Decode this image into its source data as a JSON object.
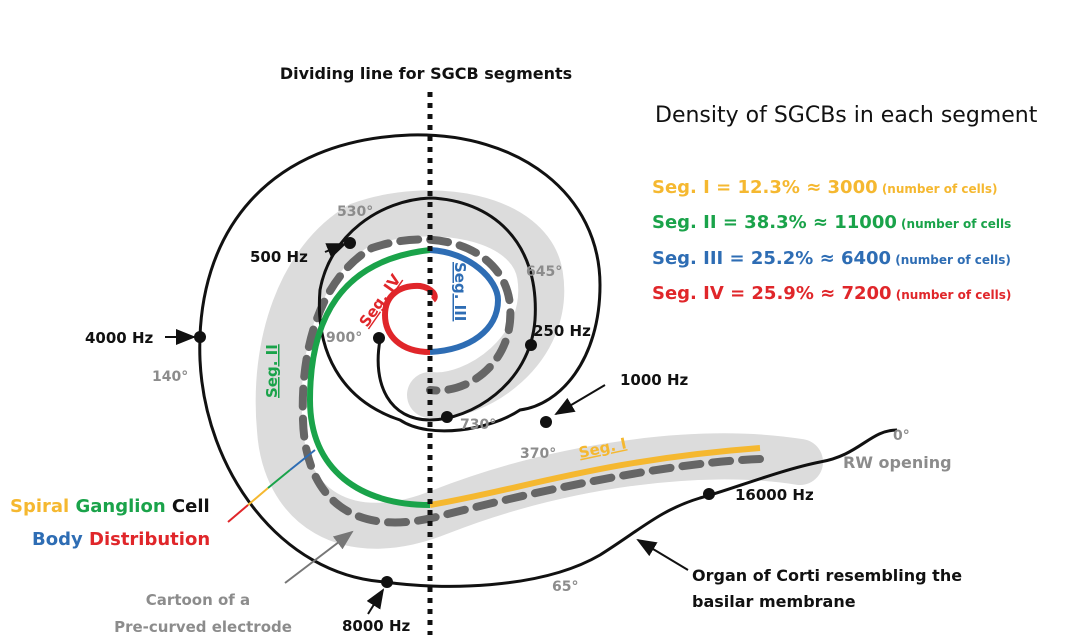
{
  "dividing_label": "Dividing line for SGCB segments",
  "density": {
    "title": "Density of SGCBs in each segment",
    "rows": [
      {
        "seg": "Seg. I",
        "eq": " = 12.3% ≈ 3000",
        "note": " (number of cells)",
        "color": "#f5b830"
      },
      {
        "seg": "Seg. II",
        "eq": " = 38.3% ≈ 11000",
        "note": " (number of cells",
        "color": "#1aa34a"
      },
      {
        "seg": "Seg. III",
        "eq": " = 25.2% ≈ 6400",
        "note": " (number of cells)",
        "color": "#2e6db4"
      },
      {
        "seg": "Seg. IV",
        "eq": " = 25.9% ≈ 7200",
        "note": " (number of cells)",
        "color": "#e0262a"
      }
    ]
  },
  "frequencies": {
    "f500": "500 Hz",
    "f4000": "4000 Hz",
    "f250": "250 Hz",
    "f1000": "1000 Hz",
    "f16000": "16000 Hz",
    "f8000": "8000 Hz"
  },
  "angles": {
    "a530": "530°",
    "a645": "645°",
    "a900": "900°",
    "a140": "140°",
    "a730": "730°",
    "a370": "370°",
    "a0": "0°",
    "a65": "65°"
  },
  "segment_labels": {
    "seg1": "Seg. I",
    "seg2": "Seg. II",
    "seg3": "Seg. III",
    "seg4": "Seg. IV"
  },
  "rw_opening": "RW opening",
  "spiral_caption": {
    "w1": "Spiral",
    "w2": "Ganglion",
    "w3": "Cell",
    "w4": "Body",
    "w5": "Distribution"
  },
  "electrode_caption": {
    "line1": "Cartoon of a",
    "line2": "Pre-curved electrode"
  },
  "organ_caption": {
    "line1": "Organ of Corti resembling the",
    "line2": "basilar membrane"
  },
  "colors": {
    "seg1": "#f5b830",
    "seg2": "#1aa34a",
    "seg3": "#2e6db4",
    "seg4": "#e0262a",
    "grey_text": "#8c8c8c",
    "band": "#dcdcdc",
    "dash": "#666666"
  }
}
